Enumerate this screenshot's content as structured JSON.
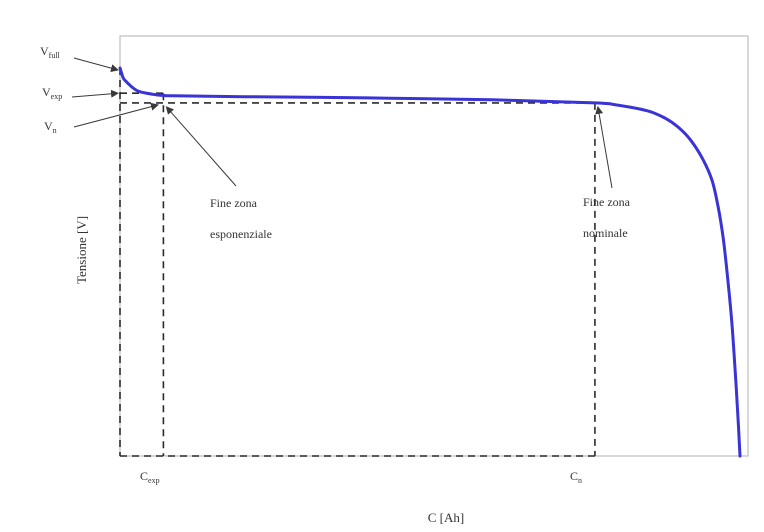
{
  "chart_data": {
    "type": "line",
    "xlabel": "C [Ah]",
    "ylabel": "Tensione [V]",
    "grid": false,
    "legend": "none",
    "series": [
      {
        "color": "#3a33d6",
        "x": [
          0,
          0.5,
          1,
          2,
          3,
          5,
          7,
          10,
          20,
          40,
          60,
          76.6,
          80,
          85,
          88,
          90,
          92,
          94,
          95.5,
          96.5,
          97.3,
          98,
          98.6,
          99.1,
          99.6,
          100
        ],
        "y": [
          1.0,
          0.975,
          0.965,
          0.95,
          0.94,
          0.933,
          0.929,
          0.928,
          0.926,
          0.923,
          0.918,
          0.91,
          0.905,
          0.89,
          0.87,
          0.848,
          0.815,
          0.765,
          0.71,
          0.64,
          0.56,
          0.46,
          0.36,
          0.25,
          0.12,
          0.0
        ]
      }
    ],
    "y_levels": {
      "V_full": 1.0,
      "V_exp": 0.935,
      "V_n": 0.91
    },
    "x_markers": {
      "C_exp": 7,
      "C_n": 76.6
    },
    "annotations": {
      "y_labels": [
        {
          "main": "V",
          "sub": "full"
        },
        {
          "main": "V",
          "sub": "exp"
        },
        {
          "main": "V",
          "sub": "n"
        }
      ],
      "x_labels": [
        {
          "main": "C",
          "sub": "exp"
        },
        {
          "main": "C",
          "sub": "n"
        }
      ],
      "callouts": [
        {
          "line1": "Fine zona",
          "line2": "esponenziale"
        },
        {
          "line1": "Fine zona",
          "line2": "nominale"
        }
      ]
    },
    "xlim": [
      0,
      100
    ],
    "ylim": [
      0,
      1.0
    ]
  },
  "colors": {
    "curve": "#3a33d6",
    "frame": "#bdbdbd",
    "dashed": "#2b2b2b",
    "arrow": "#3a3a3a",
    "text": "#333333"
  }
}
